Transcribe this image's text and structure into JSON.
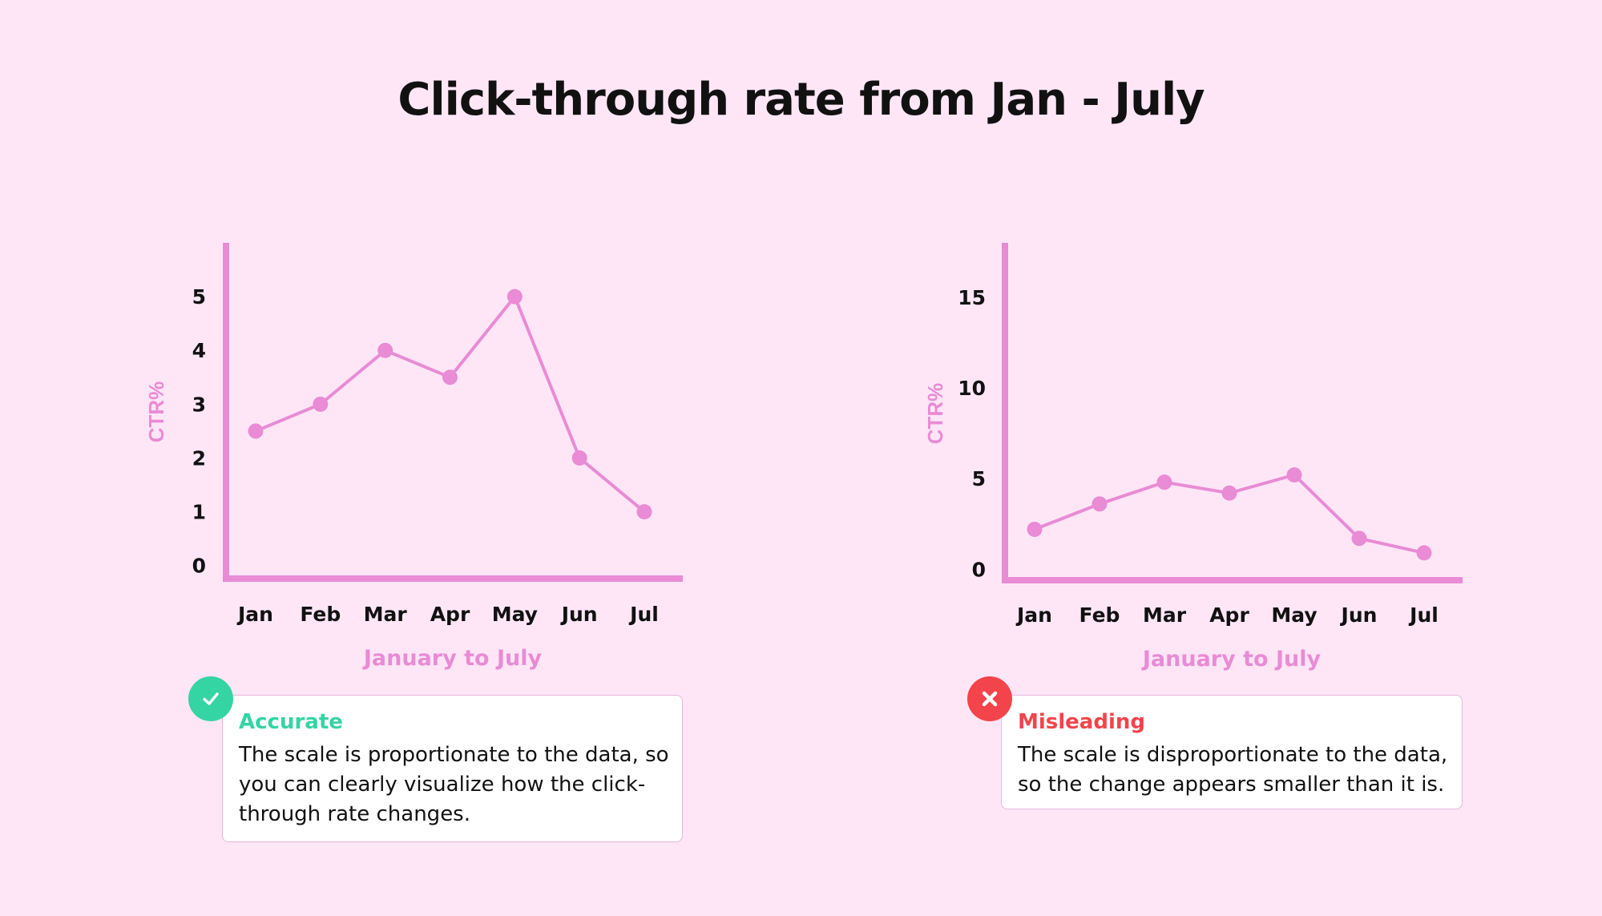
{
  "title": "Click-through rate from Jan - July",
  "colors": {
    "background": "#ffe6f7",
    "line": "#e98bd5",
    "axis": "#e98bd5",
    "label": "#e98bd5",
    "accurate": "#34d4a3",
    "misleading": "#f2444a"
  },
  "chart_data": [
    {
      "type": "line",
      "categories": [
        "Jan",
        "Feb",
        "Mar",
        "Apr",
        "May",
        "Jun",
        "Jul"
      ],
      "values": [
        2.5,
        3.0,
        4.0,
        3.5,
        5.0,
        2.0,
        1.0
      ],
      "yticks": [
        0,
        1,
        2,
        3,
        4,
        5
      ],
      "ylim": [
        -0.6,
        6.0
      ],
      "xlabel": "January to July",
      "ylabel": "CTR%",
      "grid": false,
      "legend": "none"
    },
    {
      "type": "line",
      "categories": [
        "Jan",
        "Feb",
        "Mar",
        "Apr",
        "May",
        "Jun",
        "Jul"
      ],
      "values": [
        2.2,
        3.6,
        4.8,
        4.2,
        5.2,
        1.7,
        0.9
      ],
      "yticks": [
        0,
        5,
        10,
        15
      ],
      "ylim": [
        -1.8,
        18.0
      ],
      "xlabel": "January to July",
      "ylabel": "CTR%",
      "grid": false,
      "legend": "none"
    }
  ],
  "notes": [
    {
      "status": "Accurate",
      "icon": "check-icon",
      "text": "The scale is proportionate to the data, so you can clearly visualize how the click-through rate changes."
    },
    {
      "status": "Misleading",
      "icon": "x-icon",
      "text": "The scale is disproportionate to the data, so the change appears smaller than it is."
    }
  ]
}
